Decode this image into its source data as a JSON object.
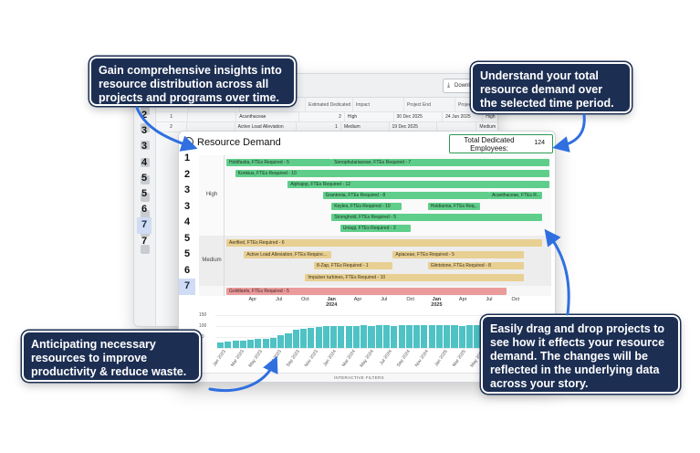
{
  "back_window": {
    "download_label": "Downl",
    "columns": [
      "",
      "External ID",
      "Name",
      "Estimated Dedicated ...",
      "Impact",
      "Project End",
      "Project Start"
    ],
    "rows": [
      [
        "1",
        "",
        "Acanthaceae",
        "2",
        "High",
        "30 Dec 2025",
        "24 Jun 2025",
        "High"
      ],
      [
        "2",
        "",
        "Active Load Alleviation",
        "1",
        "Medium",
        "19 Dec 2025",
        "",
        "Medium"
      ]
    ],
    "row_numbers": [
      "2",
      "3",
      "3",
      "4",
      "5",
      "5",
      "6",
      "7",
      "7"
    ],
    "selected_row_index": 7
  },
  "front_window": {
    "title": "Resource Demand",
    "kpi_label": "Total Dedicated Employees:",
    "kpi_value": "124",
    "row_numbers": [
      "1",
      "2",
      "3",
      "3",
      "4",
      "5",
      "5",
      "6",
      "7"
    ],
    "selected_row_index": 8,
    "bands": [
      "High",
      "Medium"
    ],
    "bars": [
      {
        "label": "Holdfastia, FTEs Required - 5",
        "color": "green",
        "band": "high",
        "lane": 0,
        "start": "2023-01",
        "end": "2023-12"
      },
      {
        "label": "Sonophulariaceae, FTEs Required - 7",
        "color": "green",
        "band": "high",
        "lane": 0,
        "start": "2024-01",
        "end": "2026-01"
      },
      {
        "label": "Konkius, FTEs Required - 10",
        "color": "green",
        "band": "high",
        "lane": 1,
        "start": "2023-02",
        "end": "2026-01"
      },
      {
        "label": "Alphajop, FTEs Required - 12",
        "color": "green",
        "band": "high",
        "lane": 2,
        "start": "2023-08",
        "end": "2026-01"
      },
      {
        "label": "Grantonia, FTEs Required - 8",
        "color": "green",
        "band": "high",
        "lane": 3,
        "start": "2023-12",
        "end": "2025-06"
      },
      {
        "label": "Acanthaceae, FTEs R...",
        "color": "green",
        "band": "high",
        "lane": 3,
        "start": "2025-07",
        "end": "2025-12"
      },
      {
        "label": "Keyles, FTEs Required - 10",
        "color": "green",
        "band": "high",
        "lane": 4,
        "start": "2024-01",
        "end": "2024-08"
      },
      {
        "label": "Holdiarnia, FTEs Req...",
        "color": "green",
        "band": "high",
        "lane": 4,
        "start": "2024-12",
        "end": "2025-05"
      },
      {
        "label": "Stronghold, FTEs Required - 5",
        "color": "green",
        "band": "high",
        "lane": 5,
        "start": "2024-01",
        "end": "2025-12"
      },
      {
        "label": "Uniagi, FTEs Required - 3",
        "color": "green",
        "band": "high",
        "lane": 6,
        "start": "2024-02",
        "end": "2024-09"
      },
      {
        "label": "Aerified, FTEs Required - 6",
        "color": "tan",
        "band": "medium",
        "lane": 0,
        "start": "2023-01",
        "end": "2025-12"
      },
      {
        "label": "Active Load Alleviation, FTEs Require...",
        "color": "tan",
        "band": "medium",
        "lane": 1,
        "start": "2023-03",
        "end": "2023-12"
      },
      {
        "label": "Apiaceae, FTEs Required - 5",
        "color": "tan",
        "band": "medium",
        "lane": 1,
        "start": "2024-08",
        "end": "2025-10"
      },
      {
        "label": "8-Zap, FTEs Required - 1",
        "color": "tan",
        "band": "medium",
        "lane": 2,
        "start": "2023-11",
        "end": "2024-07"
      },
      {
        "label": "Glintstone, FTEs Required - 8",
        "color": "tan",
        "band": "medium",
        "lane": 2,
        "start": "2024-12",
        "end": "2025-10"
      },
      {
        "label": "Impulser turbines, FTEs Required - 10",
        "color": "tan",
        "band": "medium",
        "lane": 3,
        "start": "2023-10",
        "end": "2025-10"
      },
      {
        "label": "Goldilants, FTEs Required - 5",
        "color": "pink",
        "band": "low",
        "lane": 0,
        "start": "2023-01",
        "end": "2025-08"
      }
    ],
    "time_ticks": [
      {
        "label": "Apr",
        "sub": "",
        "month": "2023-04",
        "bold": false
      },
      {
        "label": "Jul",
        "sub": "",
        "month": "2023-07",
        "bold": false
      },
      {
        "label": "Oct",
        "sub": "",
        "month": "2023-10",
        "bold": false
      },
      {
        "label": "Jan",
        "sub": "2024",
        "month": "2024-01",
        "bold": true
      },
      {
        "label": "Apr",
        "sub": "",
        "month": "2024-04",
        "bold": false
      },
      {
        "label": "Jul",
        "sub": "",
        "month": "2024-07",
        "bold": false
      },
      {
        "label": "Oct",
        "sub": "",
        "month": "2024-10",
        "bold": false
      },
      {
        "label": "Jan",
        "sub": "2025",
        "month": "2025-01",
        "bold": true
      },
      {
        "label": "Apr",
        "sub": "",
        "month": "2025-04",
        "bold": false
      },
      {
        "label": "Jul",
        "sub": "",
        "month": "2025-07",
        "bold": false
      },
      {
        "label": "Oct",
        "sub": "",
        "month": "2025-10",
        "bold": false
      }
    ],
    "histogram": {
      "y_ticks": [
        "150",
        "100",
        "50",
        "0"
      ],
      "y_max": 150,
      "values": [
        26,
        28,
        32,
        34,
        36,
        40,
        42,
        45,
        60,
        68,
        82,
        88,
        92,
        95,
        98,
        100,
        100,
        102,
        100,
        103,
        102,
        104,
        103,
        102,
        104,
        103,
        105,
        104,
        103,
        105,
        104,
        103,
        102,
        104,
        103,
        102,
        100,
        98,
        95,
        92,
        88,
        70,
        60,
        50
      ],
      "x_labels": [
        "Jan 2023",
        "Mar 2023",
        "May 2023",
        "Jul 2023",
        "Sep 2023",
        "Nov 2023",
        "Jan 2024",
        "Mar 2024",
        "May 2024",
        "Jul 2024",
        "Sep 2024",
        "Nov 2024",
        "Jan 2025",
        "Mar 2025",
        "May 2025",
        "Jul 2025",
        "Sep 2025",
        "Nov 2025"
      ]
    },
    "filters_label": "INTERACTIVE FILTERS"
  },
  "callouts": {
    "top_left": "Gain comprehensive insights into resource distribution across all projects and programs over time.",
    "top_right": "Understand your total resource demand over the selected time period.",
    "bottom_left": "Anticipating necessary resources to improve productivity & reduce waste.",
    "bottom_right": "Easily drag and drop projects to see how it effects your resource demand. The changes will be reflected in the underlying data across your story."
  },
  "colors": {
    "callout_bg": "#1c2e52",
    "arrow": "#2f6fe0",
    "bar_green": "#5fce8a",
    "bar_tan": "#e8cf92",
    "bar_pink": "#eb9b9b",
    "hist_bar": "#4ec2c4",
    "kpi_border": "#2a9a55"
  }
}
